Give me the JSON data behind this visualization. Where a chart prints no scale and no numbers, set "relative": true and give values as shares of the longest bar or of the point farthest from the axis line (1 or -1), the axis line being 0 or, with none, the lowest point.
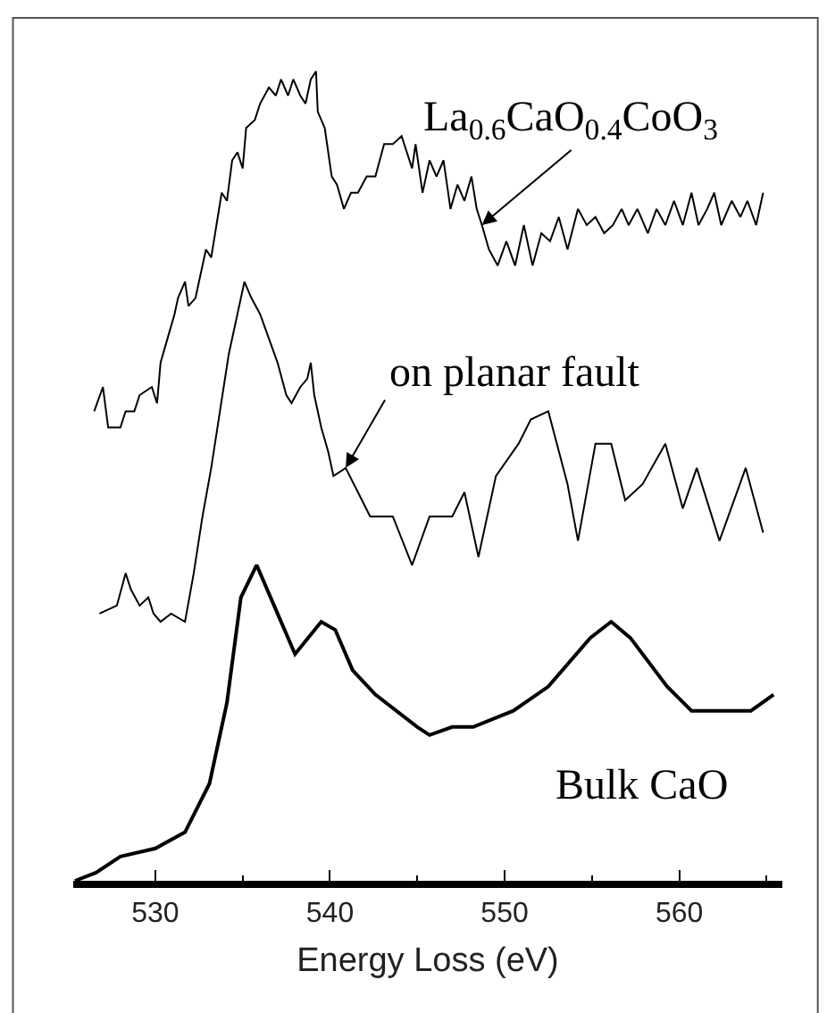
{
  "chart_data": {
    "type": "line",
    "relative": true,
    "xlabel": "Energy Loss (eV)",
    "xlim": [
      525.3,
      565.9
    ],
    "xticks": [
      530,
      540,
      550,
      560
    ],
    "marker": "none",
    "line_style": "solid",
    "series": [
      {
        "color": "#000000",
        "x": [
          526.5,
          527.0,
          527.3,
          528.0,
          528.3,
          528.8,
          529.1,
          529.8,
          530.1,
          530.3,
          530.7,
          531.1,
          531.3,
          531.7,
          531.9,
          532.3,
          532.7,
          532.9,
          533.2,
          533.5,
          533.8,
          534.1,
          534.4,
          534.7,
          535.0,
          535.2,
          535.7,
          536.0,
          536.5,
          536.9,
          537.2,
          537.6,
          537.9,
          538.3,
          538.6,
          538.9,
          539.2,
          539.3,
          539.7,
          540.1,
          540.4,
          540.8,
          541.2,
          541.6,
          542.1,
          542.6,
          543.1,
          543.6,
          544.1,
          544.7,
          544.9,
          545.3,
          545.7,
          546.1,
          546.5,
          546.9,
          547.3,
          547.7,
          548.1,
          548.4,
          548.7,
          549.1,
          549.6,
          550.1,
          550.6,
          551.1,
          551.6,
          552.1,
          552.6,
          553.1,
          553.6,
          554.2,
          554.7,
          555.2,
          555.7,
          556.2,
          556.7,
          557.1,
          557.6,
          558.2,
          558.7,
          559.2,
          559.7,
          560.2,
          560.7,
          561.1,
          561.6,
          562.0,
          562.4,
          563.0,
          563.5,
          563.9,
          564.4,
          564.8
        ],
        "values": [
          0.58,
          0.61,
          0.56,
          0.56,
          0.58,
          0.58,
          0.6,
          0.61,
          0.59,
          0.64,
          0.67,
          0.7,
          0.72,
          0.74,
          0.71,
          0.72,
          0.76,
          0.78,
          0.77,
          0.81,
          0.85,
          0.84,
          0.89,
          0.9,
          0.88,
          0.93,
          0.94,
          0.96,
          0.98,
          0.97,
          0.99,
          0.97,
          0.99,
          0.97,
          0.96,
          0.99,
          1.0,
          0.95,
          0.93,
          0.87,
          0.86,
          0.83,
          0.85,
          0.85,
          0.87,
          0.87,
          0.91,
          0.91,
          0.92,
          0.88,
          0.91,
          0.85,
          0.89,
          0.87,
          0.89,
          0.83,
          0.86,
          0.84,
          0.87,
          0.83,
          0.81,
          0.78,
          0.76,
          0.79,
          0.76,
          0.81,
          0.76,
          0.8,
          0.79,
          0.82,
          0.78,
          0.83,
          0.81,
          0.82,
          0.8,
          0.81,
          0.83,
          0.81,
          0.83,
          0.8,
          0.83,
          0.81,
          0.84,
          0.81,
          0.85,
          0.81,
          0.83,
          0.85,
          0.81,
          0.84,
          0.82,
          0.84,
          0.81,
          0.85
        ]
      },
      {
        "color": "#000000",
        "x": [
          526.8,
          527.8,
          528.3,
          528.6,
          529.1,
          529.6,
          529.9,
          530.3,
          530.9,
          531.7,
          532.2,
          532.7,
          533.2,
          533.7,
          534.2,
          534.7,
          535.1,
          535.5,
          536.0,
          536.5,
          537.0,
          537.5,
          537.8,
          538.3,
          538.7,
          538.9,
          539.1,
          539.5,
          539.9,
          540.2,
          540.9,
          541.6,
          542.3,
          543.6,
          544.7,
          545.7,
          547.0,
          547.7,
          548.5,
          549.5,
          550.8,
          551.5,
          552.5,
          553.6,
          554.2,
          555.2,
          556.1,
          556.9,
          557.9,
          559.2,
          560.2,
          561.0,
          562.3,
          563.8,
          564.8
        ],
        "values": [
          0.33,
          0.34,
          0.38,
          0.36,
          0.34,
          0.35,
          0.33,
          0.32,
          0.33,
          0.32,
          0.38,
          0.45,
          0.51,
          0.58,
          0.65,
          0.7,
          0.74,
          0.72,
          0.7,
          0.67,
          0.64,
          0.6,
          0.59,
          0.61,
          0.62,
          0.64,
          0.6,
          0.56,
          0.53,
          0.5,
          0.51,
          0.48,
          0.45,
          0.45,
          0.39,
          0.45,
          0.45,
          0.48,
          0.4,
          0.5,
          0.54,
          0.57,
          0.58,
          0.49,
          0.42,
          0.54,
          0.54,
          0.47,
          0.49,
          0.54,
          0.46,
          0.51,
          0.42,
          0.51,
          0.43
        ]
      },
      {
        "color": "#000000",
        "x": [
          525.4,
          526.6,
          528.0,
          530.0,
          531.7,
          533.1,
          534.1,
          534.9,
          535.8,
          536.8,
          538.0,
          539.5,
          540.3,
          541.3,
          542.6,
          545.0,
          545.7,
          547.0,
          548.2,
          550.5,
          552.5,
          554.9,
          556.1,
          557.2,
          559.3,
          560.7,
          562.3,
          564.1,
          565.4
        ],
        "values": [
          0.0,
          0.01,
          0.03,
          0.04,
          0.06,
          0.12,
          0.22,
          0.35,
          0.39,
          0.34,
          0.28,
          0.32,
          0.31,
          0.26,
          0.23,
          0.19,
          0.18,
          0.19,
          0.19,
          0.21,
          0.24,
          0.3,
          0.32,
          0.3,
          0.24,
          0.21,
          0.21,
          0.21,
          0.23
        ]
      }
    ],
    "annotations": [
      {
        "text": "La$_{0.6}$CaO$_{0.4}$CoO$_{3}$",
        "x": 548.7,
        "y": 0.81
      },
      {
        "text": "on planar fault",
        "x": 540.9,
        "y": 0.51
      },
      "Bulk CaO"
    ]
  }
}
